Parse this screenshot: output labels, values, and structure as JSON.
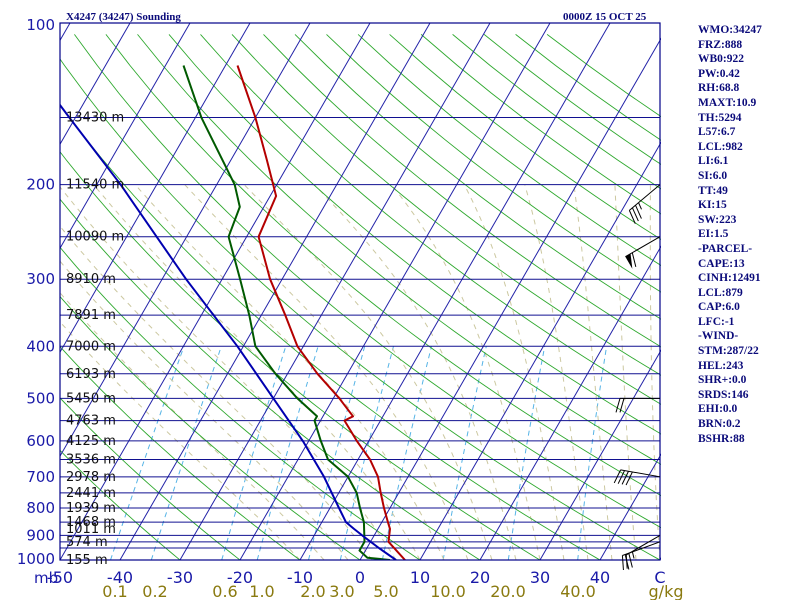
{
  "header": {
    "station_title": "X4247 (34247) Sounding",
    "valid_time": "0000Z 15 OCT 25"
  },
  "indices": [
    "WMO:34247",
    "FRZ:888",
    "WB0:922",
    "PW:0.42",
    "RH:68.8",
    "MAXT:10.9",
    "TH:5294",
    "L57:6.7",
    "LCL:982",
    "LI:6.1",
    "SI:6.0",
    "TT:49",
    "KI:15",
    "SW:223",
    "EI:1.5",
    "-PARCEL-",
    "CAPE:13",
    "CINH:12491",
    "LCL:879",
    "CAP:6.0",
    "LFC:-1",
    "-WIND-",
    "STM:287/22",
    "HEL:243",
    "SHR+:0.0",
    "SRDS:146",
    "EHI:0.0",
    "BRN:0.2",
    "BSHR:88"
  ],
  "colors": {
    "background": "#ffffff",
    "frame": "#000088",
    "isobar": "#101090",
    "isotherm": "#2323a8",
    "dry_adiabat": "#2ea82e",
    "moist_adiabat": "#ccc8a0",
    "mixing_ratio": "#56b4e6",
    "temperature": "#b40000",
    "dewpoint": "#005a00",
    "parcel": "#0000b0",
    "wind_barb": "#000000",
    "axis_text": "#1a1aa8",
    "mixing_text": "#8a7a10"
  },
  "chart_data": {
    "type": "skew-t log-p sounding",
    "title": "X4247 (34247) Sounding",
    "subtitle": "0000Z 15 OCT 25",
    "pressure_unit": "mb",
    "mixing_ratio_unit": "g/kg",
    "pressure_range": [
      1000,
      100
    ],
    "pressure_ticks": [
      100,
      200,
      300,
      400,
      500,
      600,
      700,
      800,
      900,
      1000
    ],
    "pressure_levels_drawn": [
      100,
      150,
      200,
      250,
      300,
      350,
      400,
      450,
      500,
      550,
      600,
      650,
      700,
      750,
      800,
      850,
      900,
      925,
      950,
      1000
    ],
    "temperature_ticks": [
      -50,
      -40,
      -30,
      -20,
      -10,
      0,
      10,
      20,
      30,
      40
    ],
    "temperature_range_at_surface": [
      -50,
      50
    ],
    "temperature_tick_labels": [
      "-50",
      "-40",
      "-30",
      "-20",
      "-10",
      "0",
      "10",
      "20",
      "30",
      "40",
      "C"
    ],
    "mixing_ratio_ticks": [
      0.1,
      0.2,
      0.6,
      1.0,
      2.0,
      3.0,
      5.0,
      10.0,
      20.0,
      40.0
    ],
    "mixing_ratio_labels": [
      "0.1",
      "0.2",
      "0.6",
      "1.0",
      "2.0",
      "3.0",
      "5.0",
      "10.0",
      "20.0",
      "40.0",
      "g/kg"
    ],
    "height_labels": [
      {
        "p": 1000,
        "label": "155 m"
      },
      {
        "p": 925,
        "label": "574 m"
      },
      {
        "p": 875,
        "label": "1011 m"
      },
      {
        "p": 850,
        "label": "1468 m"
      },
      {
        "p": 800,
        "label": "1939 m"
      },
      {
        "p": 750,
        "label": "2441 m"
      },
      {
        "p": 700,
        "label": "2978 m"
      },
      {
        "p": 650,
        "label": "3536 m"
      },
      {
        "p": 600,
        "label": "4125 m"
      },
      {
        "p": 550,
        "label": "4763 m"
      },
      {
        "p": 500,
        "label": "5450 m"
      },
      {
        "p": 450,
        "label": "6193 m"
      },
      {
        "p": 400,
        "label": "7000 m"
      },
      {
        "p": 350,
        "label": "7891 m"
      },
      {
        "p": 300,
        "label": "8910 m"
      },
      {
        "p": 250,
        "label": "10090 m"
      },
      {
        "p": 200,
        "label": "11540 m"
      },
      {
        "p": 150,
        "label": "13430 m"
      }
    ],
    "series": [
      {
        "name": "temperature",
        "points": [
          {
            "p": 1000,
            "t": 7.5
          },
          {
            "p": 925,
            "t": 3
          },
          {
            "p": 875,
            "t": 2
          },
          {
            "p": 850,
            "t": 1
          },
          {
            "p": 800,
            "t": -1
          },
          {
            "p": 750,
            "t": -3
          },
          {
            "p": 700,
            "t": -5
          },
          {
            "p": 650,
            "t": -8
          },
          {
            "p": 600,
            "t": -12
          },
          {
            "p": 550,
            "t": -16
          },
          {
            "p": 540,
            "t": -15
          },
          {
            "p": 500,
            "t": -19
          },
          {
            "p": 450,
            "t": -25
          },
          {
            "p": 400,
            "t": -31
          },
          {
            "p": 350,
            "t": -36
          },
          {
            "p": 300,
            "t": -42
          },
          {
            "p": 250,
            "t": -48
          },
          {
            "p": 210,
            "t": -49
          },
          {
            "p": 180,
            "t": -54
          },
          {
            "p": 150,
            "t": -60
          },
          {
            "p": 120,
            "t": -68
          }
        ]
      },
      {
        "name": "dewpoint",
        "points": [
          {
            "p": 1000,
            "t": 5
          },
          {
            "p": 990,
            "t": 1
          },
          {
            "p": 960,
            "t": -1
          },
          {
            "p": 925,
            "t": -1
          },
          {
            "p": 850,
            "t": -3
          },
          {
            "p": 800,
            "t": -5
          },
          {
            "p": 750,
            "t": -7
          },
          {
            "p": 700,
            "t": -10
          },
          {
            "p": 650,
            "t": -15
          },
          {
            "p": 600,
            "t": -18
          },
          {
            "p": 550,
            "t": -21
          },
          {
            "p": 540,
            "t": -21
          },
          {
            "p": 500,
            "t": -26
          },
          {
            "p": 450,
            "t": -32
          },
          {
            "p": 400,
            "t": -38
          },
          {
            "p": 350,
            "t": -42
          },
          {
            "p": 300,
            "t": -47
          },
          {
            "p": 250,
            "t": -53
          },
          {
            "p": 220,
            "t": -54
          },
          {
            "p": 200,
            "t": -57
          },
          {
            "p": 150,
            "t": -69
          },
          {
            "p": 120,
            "t": -77
          }
        ]
      },
      {
        "name": "parcel",
        "points": [
          {
            "p": 1000,
            "t": 6
          },
          {
            "p": 950,
            "t": 2
          },
          {
            "p": 900,
            "t": -2
          },
          {
            "p": 875,
            "t": -4
          },
          {
            "p": 850,
            "t": -6
          },
          {
            "p": 800,
            "t": -8.5
          },
          {
            "p": 700,
            "t": -14
          },
          {
            "p": 600,
            "t": -21
          },
          {
            "p": 500,
            "t": -30
          },
          {
            "p": 400,
            "t": -41
          },
          {
            "p": 300,
            "t": -56
          },
          {
            "p": 250,
            "t": -65
          },
          {
            "p": 200,
            "t": -76
          },
          {
            "p": 150,
            "t": -91
          },
          {
            "p": 110,
            "t": -107
          }
        ]
      }
    ],
    "wind_barbs": [
      {
        "p": 925,
        "direction": 250,
        "speed_kt": 20
      },
      {
        "p": 900,
        "direction": 240,
        "speed_kt": 25
      },
      {
        "p": 700,
        "direction": 280,
        "speed_kt": 40
      },
      {
        "p": 500,
        "direction": 270,
        "speed_kt": 20
      },
      {
        "p": 250,
        "direction": 240,
        "speed_kt": 60
      },
      {
        "p": 200,
        "direction": 230,
        "speed_kt": 35
      }
    ]
  }
}
